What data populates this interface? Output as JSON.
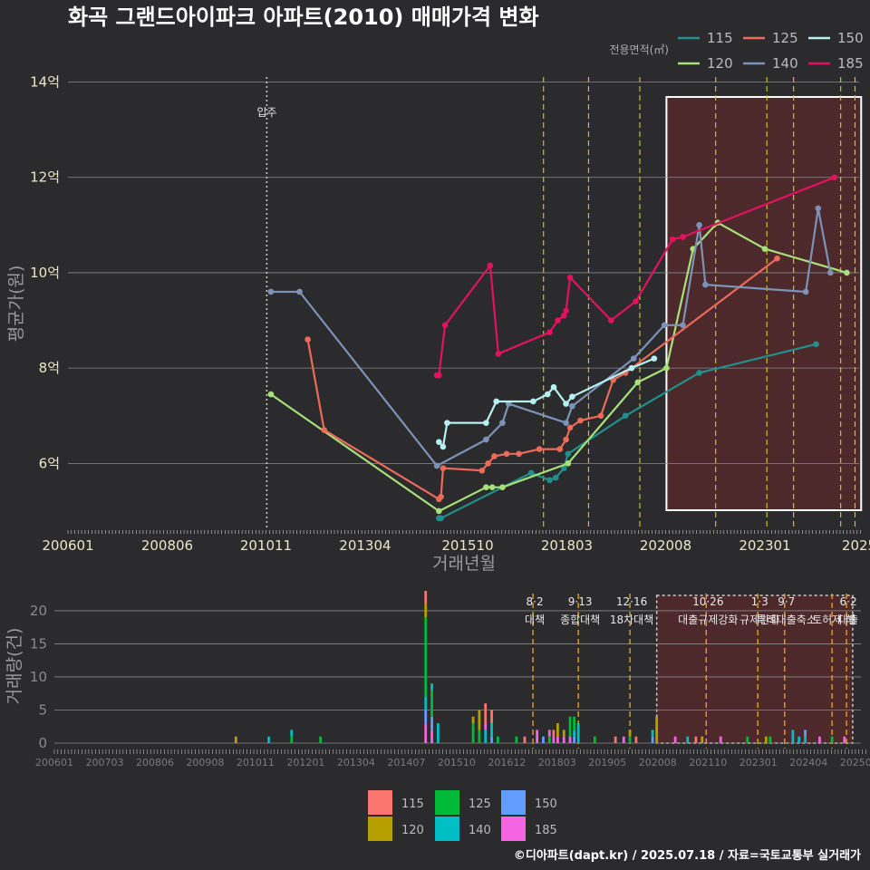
{
  "chart_data": [
    {
      "type": "line",
      "title": "화곡 그랜드아이파크 아파트(2010) 매매가격 변화",
      "xlabel": "거래년월",
      "ylabel": "평균가(원)",
      "x_ticks": [
        "200601",
        "200806",
        "201011",
        "201304",
        "201510",
        "201803",
        "202008",
        "202301",
        "2025"
      ],
      "y_ticks": [
        "6억",
        "8억",
        "10억",
        "12억",
        "14억"
      ],
      "ylim": [
        4.6,
        14.2
      ],
      "legend_title": "전용면적(㎡)",
      "occupancy_label": "입주",
      "series": [
        {
          "name": "115",
          "color": "#21908d",
          "points": [
            [
              2015.05,
              4.85
            ],
            [
              2015.1,
              4.85
            ],
            [
              2017.3,
              5.8
            ],
            [
              2017.75,
              5.65
            ],
            [
              2017.9,
              5.7
            ],
            [
              2018.1,
              5.9
            ],
            [
              2018.2,
              6.2
            ],
            [
              2019.6,
              7.0
            ],
            [
              2021.4,
              7.9
            ],
            [
              2024.25,
              8.5
            ]
          ]
        },
        {
          "name": "120",
          "color": "#a8e07a",
          "points": [
            [
              2010.95,
              7.45
            ],
            [
              2015.05,
              5.0
            ],
            [
              2016.2,
              5.5
            ],
            [
              2016.35,
              5.5
            ],
            [
              2016.6,
              5.5
            ],
            [
              2018.2,
              6.0
            ],
            [
              2019.9,
              7.7
            ],
            [
              2020.6,
              8.0
            ],
            [
              2021.25,
              10.5
            ],
            [
              2021.85,
              11.05
            ],
            [
              2023.0,
              10.5
            ],
            [
              2025.0,
              10.0
            ]
          ]
        },
        {
          "name": "125",
          "color": "#ed6a5a",
          "points": [
            [
              2011.85,
              8.6
            ],
            [
              2012.25,
              6.7
            ],
            [
              2015.05,
              5.25
            ],
            [
              2015.1,
              5.3
            ],
            [
              2015.15,
              5.9
            ],
            [
              2016.1,
              5.85
            ],
            [
              2016.25,
              6.0
            ],
            [
              2016.4,
              6.15
            ],
            [
              2016.7,
              6.2
            ],
            [
              2017.0,
              6.2
            ],
            [
              2017.5,
              6.3
            ],
            [
              2018.0,
              6.3
            ],
            [
              2018.15,
              6.5
            ],
            [
              2018.25,
              6.75
            ],
            [
              2018.5,
              6.9
            ],
            [
              2019.0,
              7.0
            ],
            [
              2019.3,
              7.75
            ],
            [
              2019.6,
              7.9
            ],
            [
              2023.3,
              10.3
            ]
          ]
        },
        {
          "name": "140",
          "color": "#7c93b7",
          "points": [
            [
              2010.95,
              9.6
            ],
            [
              2011.65,
              9.6
            ],
            [
              2015.0,
              5.95
            ],
            [
              2016.2,
              6.5
            ],
            [
              2016.6,
              6.85
            ],
            [
              2016.75,
              7.25
            ],
            [
              2018.15,
              6.85
            ],
            [
              2018.3,
              7.2
            ],
            [
              2019.8,
              8.2
            ],
            [
              2020.55,
              8.9
            ],
            [
              2021.0,
              8.9
            ],
            [
              2021.4,
              11.0
            ],
            [
              2021.55,
              9.75
            ],
            [
              2024.0,
              9.6
            ],
            [
              2024.3,
              11.35
            ],
            [
              2024.6,
              10.0
            ]
          ]
        },
        {
          "name": "150",
          "color": "#b6f0f0",
          "points": [
            [
              2015.05,
              6.45
            ],
            [
              2015.15,
              6.35
            ],
            [
              2015.25,
              6.85
            ],
            [
              2016.2,
              6.85
            ],
            [
              2016.45,
              7.3
            ],
            [
              2017.35,
              7.3
            ],
            [
              2017.7,
              7.45
            ],
            [
              2017.85,
              7.6
            ],
            [
              2018.15,
              7.25
            ],
            [
              2018.3,
              7.4
            ],
            [
              2019.75,
              8.0
            ],
            [
              2020.3,
              8.2
            ]
          ]
        },
        {
          "name": "185",
          "color": "#e3125f",
          "points": [
            [
              2015.0,
              7.85
            ],
            [
              2015.05,
              7.85
            ],
            [
              2015.2,
              8.9
            ],
            [
              2016.3,
              10.15
            ],
            [
              2016.5,
              8.3
            ],
            [
              2017.75,
              8.75
            ],
            [
              2017.95,
              9.0
            ],
            [
              2018.1,
              9.1
            ],
            [
              2018.15,
              9.2
            ],
            [
              2018.25,
              9.9
            ],
            [
              2019.25,
              9.0
            ],
            [
              2019.85,
              9.4
            ],
            [
              2020.75,
              10.7
            ],
            [
              2021.0,
              10.75
            ],
            [
              2024.7,
              12.0
            ]
          ]
        }
      ],
      "event_lines": [
        2017.6,
        2018.7,
        2019.95,
        2021.8,
        2023.05,
        2023.7,
        2024.85,
        2025.2
      ],
      "highlight_region": [
        2020.6,
        2025.35
      ]
    },
    {
      "type": "bar",
      "ylabel": "거래량(건)",
      "y_ticks": [
        "0",
        "5",
        "10",
        "15",
        "20"
      ],
      "ylim": [
        0,
        23
      ],
      "x_ticks": [
        "200601",
        "200703",
        "200806",
        "200908",
        "201011",
        "201201",
        "201304",
        "201407",
        "201510",
        "201612",
        "201803",
        "201905",
        "202008",
        "202110",
        "202301",
        "202404",
        "202506"
      ],
      "bars": [
        {
          "t": 2010.4,
          "s": [
            {
              "k": "120",
              "v": 1
            }
          ]
        },
        {
          "t": 2011.2,
          "s": [
            {
              "k": "140",
              "v": 1
            }
          ]
        },
        {
          "t": 2011.75,
          "s": [
            {
              "k": "125",
              "v": 1
            },
            {
              "k": "140",
              "v": 1
            }
          ]
        },
        {
          "t": 2012.45,
          "s": [
            {
              "k": "125",
              "v": 1
            }
          ]
        },
        {
          "t": 2015.0,
          "s": [
            {
              "k": "185",
              "v": 3
            },
            {
              "k": "150",
              "v": 2
            },
            {
              "k": "140",
              "v": 2
            },
            {
              "k": "125",
              "v": 12
            },
            {
              "k": "120",
              "v": 2
            },
            {
              "k": "115",
              "v": 2
            }
          ]
        },
        {
          "t": 2015.15,
          "s": [
            {
              "k": "185",
              "v": 2
            },
            {
              "k": "150",
              "v": 2
            },
            {
              "k": "125",
              "v": 4
            },
            {
              "k": "140",
              "v": 1
            }
          ]
        },
        {
          "t": 2015.3,
          "s": [
            {
              "k": "140",
              "v": 3
            }
          ]
        },
        {
          "t": 2016.15,
          "s": [
            {
              "k": "125",
              "v": 3
            },
            {
              "k": "120",
              "v": 1
            }
          ]
        },
        {
          "t": 2016.3,
          "s": [
            {
              "k": "125",
              "v": 2
            },
            {
              "k": "120",
              "v": 3
            }
          ]
        },
        {
          "t": 2016.45,
          "s": [
            {
              "k": "140",
              "v": 2
            },
            {
              "k": "185",
              "v": 1
            },
            {
              "k": "115",
              "v": 3
            }
          ]
        },
        {
          "t": 2016.6,
          "s": [
            {
              "k": "150",
              "v": 1
            },
            {
              "k": "140",
              "v": 2
            },
            {
              "k": "115",
              "v": 2
            }
          ]
        },
        {
          "t": 2016.75,
          "s": [
            {
              "k": "125",
              "v": 1
            }
          ]
        },
        {
          "t": 2017.2,
          "s": [
            {
              "k": "125",
              "v": 1
            }
          ]
        },
        {
          "t": 2017.4,
          "s": [
            {
              "k": "115",
              "v": 1
            }
          ]
        },
        {
          "t": 2017.7,
          "s": [
            {
              "k": "185",
              "v": 2
            }
          ]
        },
        {
          "t": 2017.85,
          "s": [
            {
              "k": "150",
              "v": 1
            }
          ]
        },
        {
          "t": 2018.0,
          "s": [
            {
              "k": "125",
              "v": 1
            },
            {
              "k": "185",
              "v": 1
            }
          ]
        },
        {
          "t": 2018.1,
          "s": [
            {
              "k": "185",
              "v": 1
            },
            {
              "k": "115",
              "v": 1
            }
          ]
        },
        {
          "t": 2018.2,
          "s": [
            {
              "k": "185",
              "v": 1
            },
            {
              "k": "120",
              "v": 2
            }
          ]
        },
        {
          "t": 2018.35,
          "s": [
            {
              "k": "185",
              "v": 1
            },
            {
              "k": "120",
              "v": 1
            }
          ]
        },
        {
          "t": 2018.5,
          "s": [
            {
              "k": "185",
              "v": 1
            },
            {
              "k": "125",
              "v": 3
            }
          ]
        },
        {
          "t": 2018.6,
          "s": [
            {
              "k": "150",
              "v": 1
            },
            {
              "k": "140",
              "v": 1
            },
            {
              "k": "125",
              "v": 2
            }
          ]
        },
        {
          "t": 2018.7,
          "s": [
            {
              "k": "140",
              "v": 3
            }
          ]
        },
        {
          "t": 2019.1,
          "s": [
            {
              "k": "125",
              "v": 1
            }
          ]
        },
        {
          "t": 2019.6,
          "s": [
            {
              "k": "115",
              "v": 1
            }
          ]
        },
        {
          "t": 2019.8,
          "s": [
            {
              "k": "185",
              "v": 1
            }
          ]
        },
        {
          "t": 2019.95,
          "s": [
            {
              "k": "125",
              "v": 1
            },
            {
              "k": "120",
              "v": 1
            }
          ]
        },
        {
          "t": 2020.1,
          "s": [
            {
              "k": "115",
              "v": 1
            }
          ]
        },
        {
          "t": 2020.5,
          "s": [
            {
              "k": "150",
              "v": 1
            },
            {
              "k": "140",
              "v": 1
            }
          ]
        },
        {
          "t": 2020.6,
          "s": [
            {
              "k": "120",
              "v": 4
            }
          ]
        },
        {
          "t": 2021.05,
          "s": [
            {
              "k": "185",
              "v": 1
            }
          ]
        },
        {
          "t": 2021.35,
          "s": [
            {
              "k": "140",
              "v": 1
            }
          ]
        },
        {
          "t": 2021.55,
          "s": [
            {
              "k": "115",
              "v": 1
            }
          ]
        },
        {
          "t": 2021.7,
          "s": [
            {
              "k": "120",
              "v": 1
            }
          ]
        },
        {
          "t": 2022.15,
          "s": [
            {
              "k": "185",
              "v": 1
            }
          ]
        },
        {
          "t": 2022.8,
          "s": [
            {
              "k": "125",
              "v": 1
            }
          ]
        },
        {
          "t": 2023.25,
          "s": [
            {
              "k": "120",
              "v": 1
            }
          ]
        },
        {
          "t": 2023.35,
          "s": [
            {
              "k": "125",
              "v": 1
            }
          ]
        },
        {
          "t": 2023.9,
          "s": [
            {
              "k": "140",
              "v": 2
            }
          ]
        },
        {
          "t": 2024.05,
          "s": [
            {
              "k": "140",
              "v": 1
            }
          ]
        },
        {
          "t": 2024.2,
          "s": [
            {
              "k": "140",
              "v": 1
            },
            {
              "k": "150",
              "v": 1
            }
          ]
        },
        {
          "t": 2024.55,
          "s": [
            {
              "k": "185",
              "v": 1
            }
          ]
        },
        {
          "t": 2024.85,
          "s": [
            {
              "k": "125",
              "v": 1
            }
          ]
        },
        {
          "t": 2025.15,
          "s": [
            {
              "k": "185",
              "v": 1
            }
          ]
        }
      ],
      "events": [
        {
          "t": 2017.6,
          "date": "8·2",
          "label": "대책"
        },
        {
          "t": 2018.7,
          "date": "9·13",
          "label": "종합대책"
        },
        {
          "t": 2019.95,
          "date": "12·16",
          "label": "18차대책"
        },
        {
          "t": 2021.8,
          "date": "10·26",
          "label": "대출규제강화"
        },
        {
          "t": 2023.05,
          "date": "1·3",
          "label": "규제완화"
        },
        {
          "t": 2023.7,
          "date": "9·7",
          "label": "특례대출축소"
        },
        {
          "t": 2024.85,
          "date": "",
          "label": "토허제 해"
        },
        {
          "t": 2025.2,
          "date": "6·2",
          "label": "대출"
        }
      ],
      "legend": [
        "115",
        "120",
        "125",
        "140",
        "150",
        "185"
      ],
      "legend_colors": {
        "115": "#f8766d",
        "120": "#b79f00",
        "125": "#00ba38",
        "140": "#00bfc4",
        "150": "#619cff",
        "185": "#f564e3"
      },
      "highlight_region": [
        2020.6,
        2025.35
      ]
    }
  ],
  "footer": "©디아파트(dapt.kr) / 2025.07.18 / 자료=국토교통부 실거래가"
}
